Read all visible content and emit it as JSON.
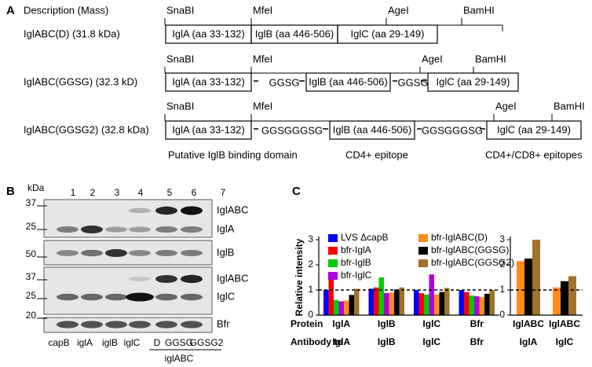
{
  "panel_a": {
    "label": "A",
    "header": "Description (Mass)",
    "constructs": [
      {
        "description": "IglABC(D) (31.8 kDa)",
        "sites": [
          "SnaBI",
          "MfeI",
          "AgeI",
          "BamHI"
        ],
        "segments": [
          "IglA (aa 33-132)",
          "IglB (aa 446-506)",
          "IglC (aa 29-149)"
        ],
        "linkers": []
      },
      {
        "description": "IglABC(GGSG) (32.3 kD)",
        "sites": [
          "SnaBI",
          "MfeI",
          "AgeI",
          "BamHI"
        ],
        "segments": [
          "IglA (aa 33-132)",
          "IglB (aa 446-506)",
          "IglC (aa 29-149)"
        ],
        "linkers": [
          "GGSG",
          "GGSG"
        ]
      },
      {
        "description": "IglABC(GGSG2) (32.8 kDa)",
        "sites": [
          "SnaBI",
          "MfeI",
          "AgeI",
          "BamHI"
        ],
        "segments": [
          "IglA (aa 33-132)",
          "IglB (aa 446-506)",
          "IglC (aa 29-149)"
        ],
        "linkers": [
          "GGSGGGSG",
          "GGSGGGSG"
        ]
      }
    ],
    "footer": [
      "Putative IglB binding domain",
      "CD4+ epitope",
      "CD4+/CD8+ epitopes"
    ]
  },
  "panel_b": {
    "label": "B",
    "unit": "kDa",
    "lanes": [
      1,
      2,
      3,
      4,
      5,
      6,
      7
    ],
    "markers": [
      37,
      25,
      50,
      37,
      25,
      20
    ],
    "bands": [
      "IglABC",
      "IglA",
      "IglB",
      "IglABC",
      "IglC",
      "Bfr"
    ],
    "samples": [
      "capB",
      "iglA",
      "iglB",
      "iglC",
      "D",
      "GGSG",
      "GGSG2"
    ],
    "group": "iglABC"
  },
  "panel_c": {
    "label": "C",
    "row_labels": [
      "Protein",
      "Antibody to"
    ]
  },
  "chart_data": [
    {
      "type": "bar",
      "ylabel": "Relative intensity",
      "categories": [
        "IglA",
        "IglB",
        "IglC",
        "Bfr"
      ],
      "categories2": [
        "IglA",
        "IglB",
        "IglC",
        "Bfr"
      ],
      "ylim": [
        0,
        3
      ],
      "yticks": [
        0,
        1,
        2,
        3
      ],
      "refline": 1,
      "series": [
        {
          "name": "LVS ΔcapB",
          "color": "#0000ff",
          "values": [
            1.0,
            1.05,
            1.0,
            1.0
          ]
        },
        {
          "name": "bfr-IglA",
          "color": "#ff0000",
          "values": [
            1.62,
            1.1,
            0.87,
            0.92
          ]
        },
        {
          "name": "bfr-IglB",
          "color": "#00cc00",
          "values": [
            0.6,
            1.5,
            0.82,
            0.78
          ]
        },
        {
          "name": "bfr-IglC",
          "color": "#b000e0",
          "values": [
            0.55,
            0.88,
            1.62,
            0.75
          ]
        },
        {
          "name": "bfr-IglABC(D)",
          "color": "#ff8c1a",
          "values": [
            0.58,
            0.9,
            0.82,
            0.72
          ]
        },
        {
          "name": "bfr-IglABC(GGSG)",
          "color": "#000000",
          "values": [
            0.8,
            1.02,
            0.92,
            0.85
          ]
        },
        {
          "name": "bfr-IglABC(GGSG2)",
          "color": "#a0722a",
          "values": [
            1.05,
            1.1,
            1.08,
            1.0
          ]
        }
      ]
    },
    {
      "type": "bar",
      "categories": [
        "IglABC",
        "IglABC"
      ],
      "categories2": [
        "IglA",
        "IglC"
      ],
      "ylim": [
        0,
        3
      ],
      "yticks": [
        0,
        1,
        2,
        3
      ],
      "refline": 1,
      "series": [
        {
          "name": "bfr-IglABC(D)",
          "color": "#ff8c1a",
          "values": [
            2.15,
            1.1
          ]
        },
        {
          "name": "bfr-IglABC(GGSG)",
          "color": "#000000",
          "values": [
            2.25,
            1.35
          ]
        },
        {
          "name": "bfr-IglABC(GGSG2)",
          "color": "#a0722a",
          "values": [
            3.0,
            1.55
          ]
        }
      ]
    }
  ]
}
